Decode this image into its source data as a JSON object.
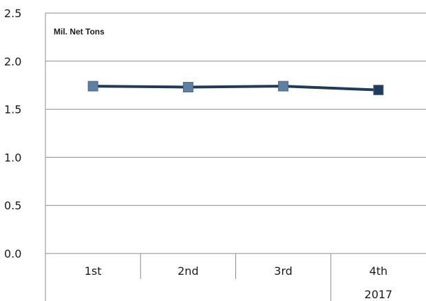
{
  "chart_data": {
    "type": "line",
    "unit_label": "Mil. Net Tons",
    "categories": [
      "1st",
      "2nd",
      "3rd",
      "4th"
    ],
    "year_group": "2017",
    "series": [
      {
        "values": [
          1.74,
          1.73,
          1.74,
          1.7
        ],
        "color": "#1f3a5a",
        "marker_colors": [
          "#5f7fa3",
          "#5f7fa3",
          "#5f7fa3",
          "#1f3a5a"
        ]
      }
    ],
    "y_ticks": [
      "0.0",
      "0.5",
      "1.0",
      "1.5",
      "2.0",
      "2.5"
    ],
    "ylim": [
      0,
      2.5
    ],
    "grid": true,
    "legend": "none"
  }
}
